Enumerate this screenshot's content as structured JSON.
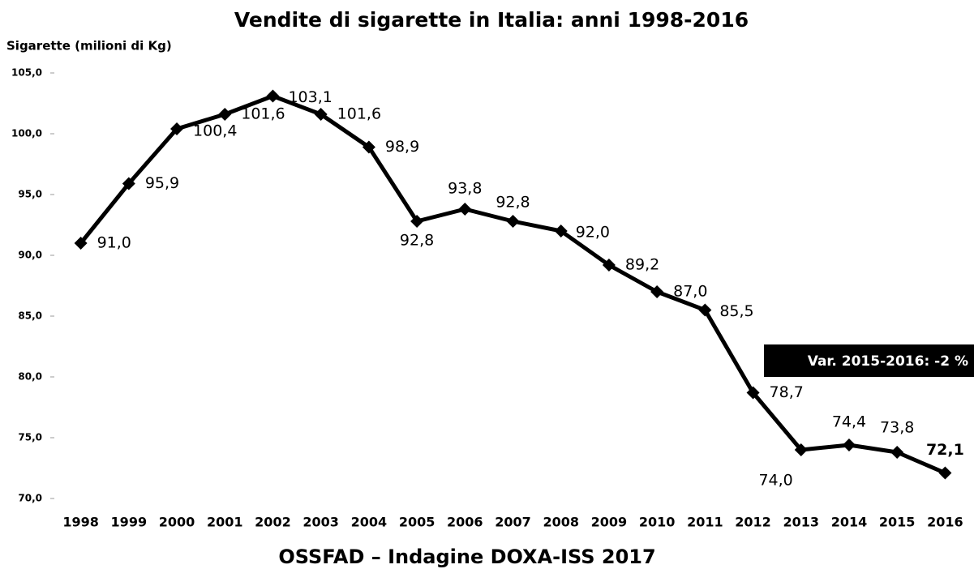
{
  "chart_data": {
    "type": "line",
    "title": "Vendite di sigarette in Italia: anni 1998-2016",
    "y_label": "Sigarette (milioni di Kg)",
    "footer": "OSSFAD – Indagine DOXA-ISS 2017",
    "annotation": "Var. 2015-2016: -2 %",
    "categories": [
      "1998",
      "1999",
      "2000",
      "2001",
      "2002",
      "2003",
      "2004",
      "2005",
      "2006",
      "2007",
      "2008",
      "2009",
      "2010",
      "2011",
      "2012",
      "2013",
      "2014",
      "2015",
      "2016"
    ],
    "series": [
      {
        "name": "Sigarette",
        "color": "#000000",
        "values": [
          91.0,
          95.9,
          100.4,
          101.6,
          103.1,
          101.6,
          98.9,
          92.8,
          93.8,
          92.8,
          92.0,
          89.2,
          87.0,
          85.5,
          78.7,
          74.0,
          74.4,
          73.8,
          72.1
        ],
        "value_labels": [
          "91,0",
          "95,9",
          "100,4",
          "101,6",
          "103,1",
          "101,6",
          "98,9",
          "92,8",
          "93,8",
          "92,8",
          "92,0",
          "89,2",
          "87,0",
          "85,5",
          "78,7",
          "74,0",
          "74,4",
          "73,8",
          "72,1"
        ]
      }
    ],
    "ylim": [
      70,
      105
    ],
    "yticks": [
      {
        "value": 70,
        "label": "70,0"
      },
      {
        "value": 75,
        "label": "75,0"
      },
      {
        "value": 80,
        "label": "80,0"
      },
      {
        "value": 85,
        "label": "85,0"
      },
      {
        "value": 90,
        "label": "90,0"
      },
      {
        "value": 95,
        "label": "95,0"
      },
      {
        "value": 100,
        "label": "100,0"
      },
      {
        "value": 105,
        "label": "105,0"
      }
    ]
  }
}
